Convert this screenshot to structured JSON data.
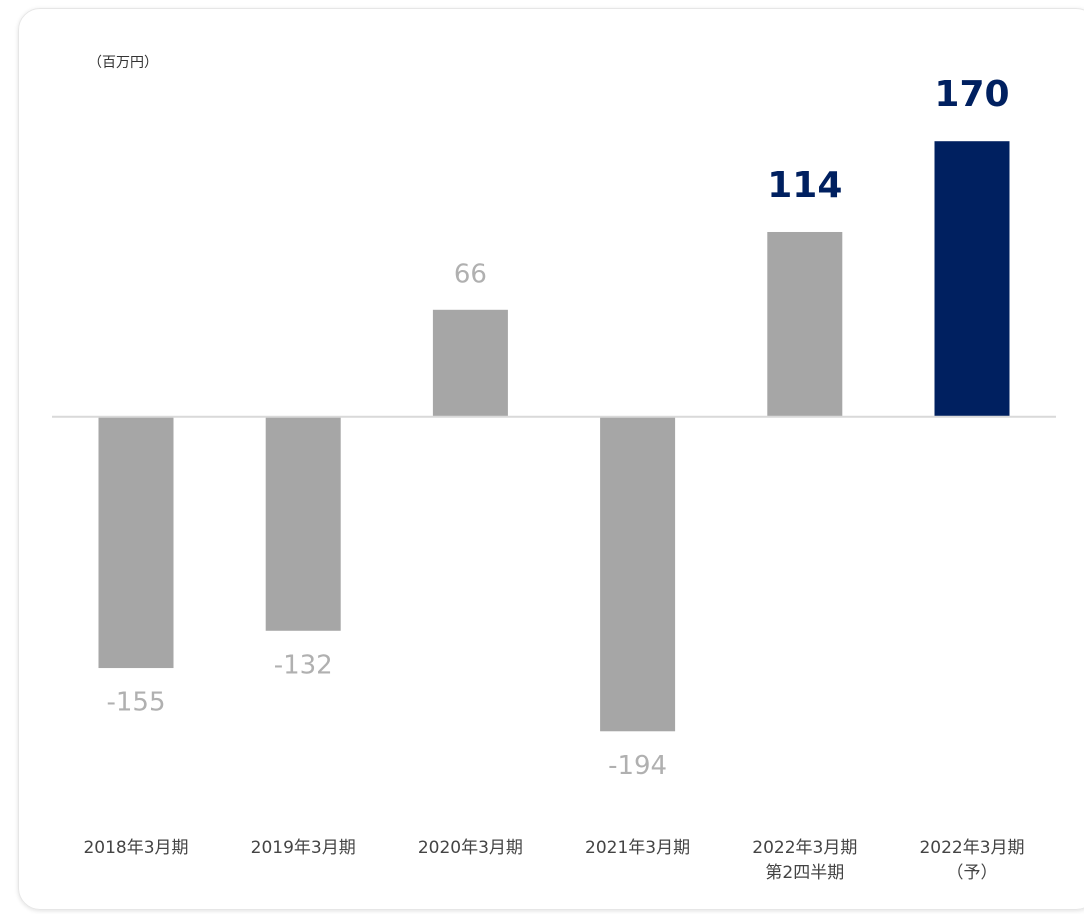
{
  "chart_data": {
    "type": "bar",
    "unit_label": "（百万円）",
    "categories": [
      "2018年3月期",
      "2019年3月期",
      "2020年3月期",
      "2021年3月期",
      "2022年3月期\n第2四半期",
      "2022年3月期\n（予）"
    ],
    "values": [
      -155,
      -132,
      66,
      -194,
      114,
      170
    ],
    "colors": [
      "#a6a6a6",
      "#a6a6a6",
      "#a6a6a6",
      "#a6a6a6",
      "#a6a6a6",
      "#002060"
    ],
    "label_colors": [
      "#b0b0b0",
      "#b0b0b0",
      "#b0b0b0",
      "#b0b0b0",
      "#002060",
      "#002060"
    ],
    "label_weights": [
      "normal",
      "normal",
      "normal",
      "normal",
      "bold",
      "bold"
    ],
    "ylim": [
      -200,
      180
    ]
  }
}
